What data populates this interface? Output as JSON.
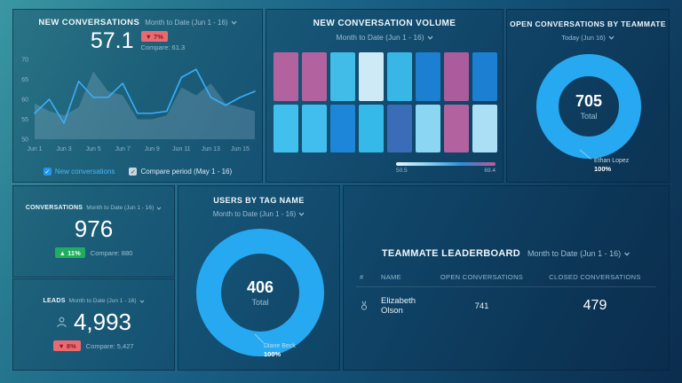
{
  "colors": {
    "accent": "#27a9f2",
    "line-blue": "#3aaefc",
    "compare-area": "rgba(190,214,230,0.22)",
    "badge-up-bg": "#1fae5e",
    "badge-up-text": "#eafff3",
    "badge-down-bg": "#ea6a70",
    "badge-down-text": "#7e1c28",
    "checkbox-blue": "#2196f3",
    "muted": "#9cbed4"
  },
  "panels": {
    "new_conversations": {
      "title": "NEW CONVERSATIONS",
      "range": "Month to Date (Jun 1 - 16)",
      "value": "57.1",
      "delta_badge": "▼ 7%",
      "compare": "Compare: 61.3",
      "legend": [
        {
          "label": "New conversations"
        },
        {
          "label": "Compare period (May 1 - 16)"
        }
      ]
    },
    "volume": {
      "title": "NEW CONVERSATION VOLUME",
      "range": "Month to Date (Jun 1 - 16)",
      "scale_min": "50.5",
      "scale_max": "69.4"
    },
    "open_by_teammate": {
      "title": "OPEN CONVERSATIONS BY TEAMMATE",
      "range": "Today (Jun 16)",
      "total": "705",
      "total_label": "Total",
      "segment_label": "Ethan Lopez",
      "segment_value": "100%"
    },
    "conversations": {
      "title": "CONVERSATIONS",
      "range": "Month to Date (Jun 1 - 16)",
      "value": "976",
      "delta_badge": "▲ 11%",
      "compare": "Compare: 880"
    },
    "leads": {
      "title": "LEADS",
      "range": "Month to Date (Jun 1 - 16)",
      "value": "4,993",
      "delta_badge": "▼ 8%",
      "compare": "Compare: 5,427"
    },
    "users_by_tag": {
      "title": "USERS BY TAG NAME",
      "range": "Month to Date (Jun 1 - 16)",
      "total": "406",
      "total_label": "Total",
      "segment_label": "Diane Beck",
      "segment_value": "100%"
    },
    "leaderboard": {
      "title": "TEAMMATE LEADERBOARD",
      "range": "Month to Date (Jun 1 - 16)",
      "columns": [
        "#",
        "NAME",
        "OPEN CONVERSATIONS",
        "CLOSED CONVERSATIONS"
      ],
      "rows": [
        {
          "name": "Elizabeth Olson",
          "open": "741",
          "closed": "479"
        }
      ]
    }
  },
  "chart_data": [
    {
      "type": "line",
      "title": "NEW CONVERSATIONS",
      "x_tick_labels": [
        "Jun 1",
        "Jun 3",
        "Jun 5",
        "Jun 7",
        "Jun 9",
        "Jun 11",
        "Jun 13",
        "Jun 15"
      ],
      "series": [
        {
          "name": "New conversations",
          "values": [
            56.5,
            60,
            54,
            64.5,
            60.5,
            60.5,
            64,
            56.5,
            56.5,
            57,
            65.5,
            67.5,
            60.5,
            58.5,
            60.5,
            62
          ]
        },
        {
          "name": "Compare period (May 1 - 16)",
          "values": [
            59,
            57,
            56,
            58,
            67,
            62,
            61,
            55,
            55,
            56,
            63,
            61,
            64,
            59,
            58,
            57
          ]
        }
      ],
      "ylim": [
        50,
        70
      ],
      "yticks": [
        50,
        55,
        60,
        65,
        70
      ],
      "grid": false,
      "legend_position": "bottom",
      "summary": {
        "current": 57.1,
        "compare": 61.3,
        "delta_pct": -7
      }
    },
    {
      "type": "heatmap",
      "title": "NEW CONVERSATION VOLUME",
      "rows": 2,
      "cols": 8,
      "scale": {
        "min": 50.5,
        "max": 69.4
      },
      "colors": [
        [
          "#b2639f",
          "#b2639f",
          "#41bce9",
          "#cfeaf7",
          "#38b7e6",
          "#1d7fd2",
          "#aa5c9c",
          "#1d7fd2"
        ],
        [
          "#41c0ee",
          "#41bdee",
          "#1e86d8",
          "#35b9e9",
          "#3a6cb8",
          "#8ad6f3",
          "#b2639f",
          "#abdff5"
        ]
      ],
      "values_estimated": [
        [
          68.5,
          68.5,
          57,
          51,
          57.5,
          62,
          68,
          62
        ],
        [
          57,
          57,
          61.5,
          57.5,
          64.5,
          54,
          68.5,
          52.5
        ]
      ]
    },
    {
      "type": "pie",
      "title": "OPEN CONVERSATIONS BY TEAMMATE",
      "total": 705,
      "segments": [
        {
          "label": "Ethan Lopez",
          "percent": 100
        }
      ]
    },
    {
      "type": "pie",
      "title": "USERS BY TAG NAME",
      "total": 406,
      "segments": [
        {
          "label": "Diane Beck",
          "percent": 100
        }
      ]
    },
    {
      "type": "table",
      "title": "TEAMMATE LEADERBOARD",
      "columns": [
        "#",
        "NAME",
        "OPEN CONVERSATIONS",
        "CLOSED CONVERSATIONS"
      ],
      "rows": [
        {
          "rank": 1,
          "name": "Elizabeth Olson",
          "open_conversations": 741,
          "closed_conversations": 479
        }
      ]
    }
  ]
}
